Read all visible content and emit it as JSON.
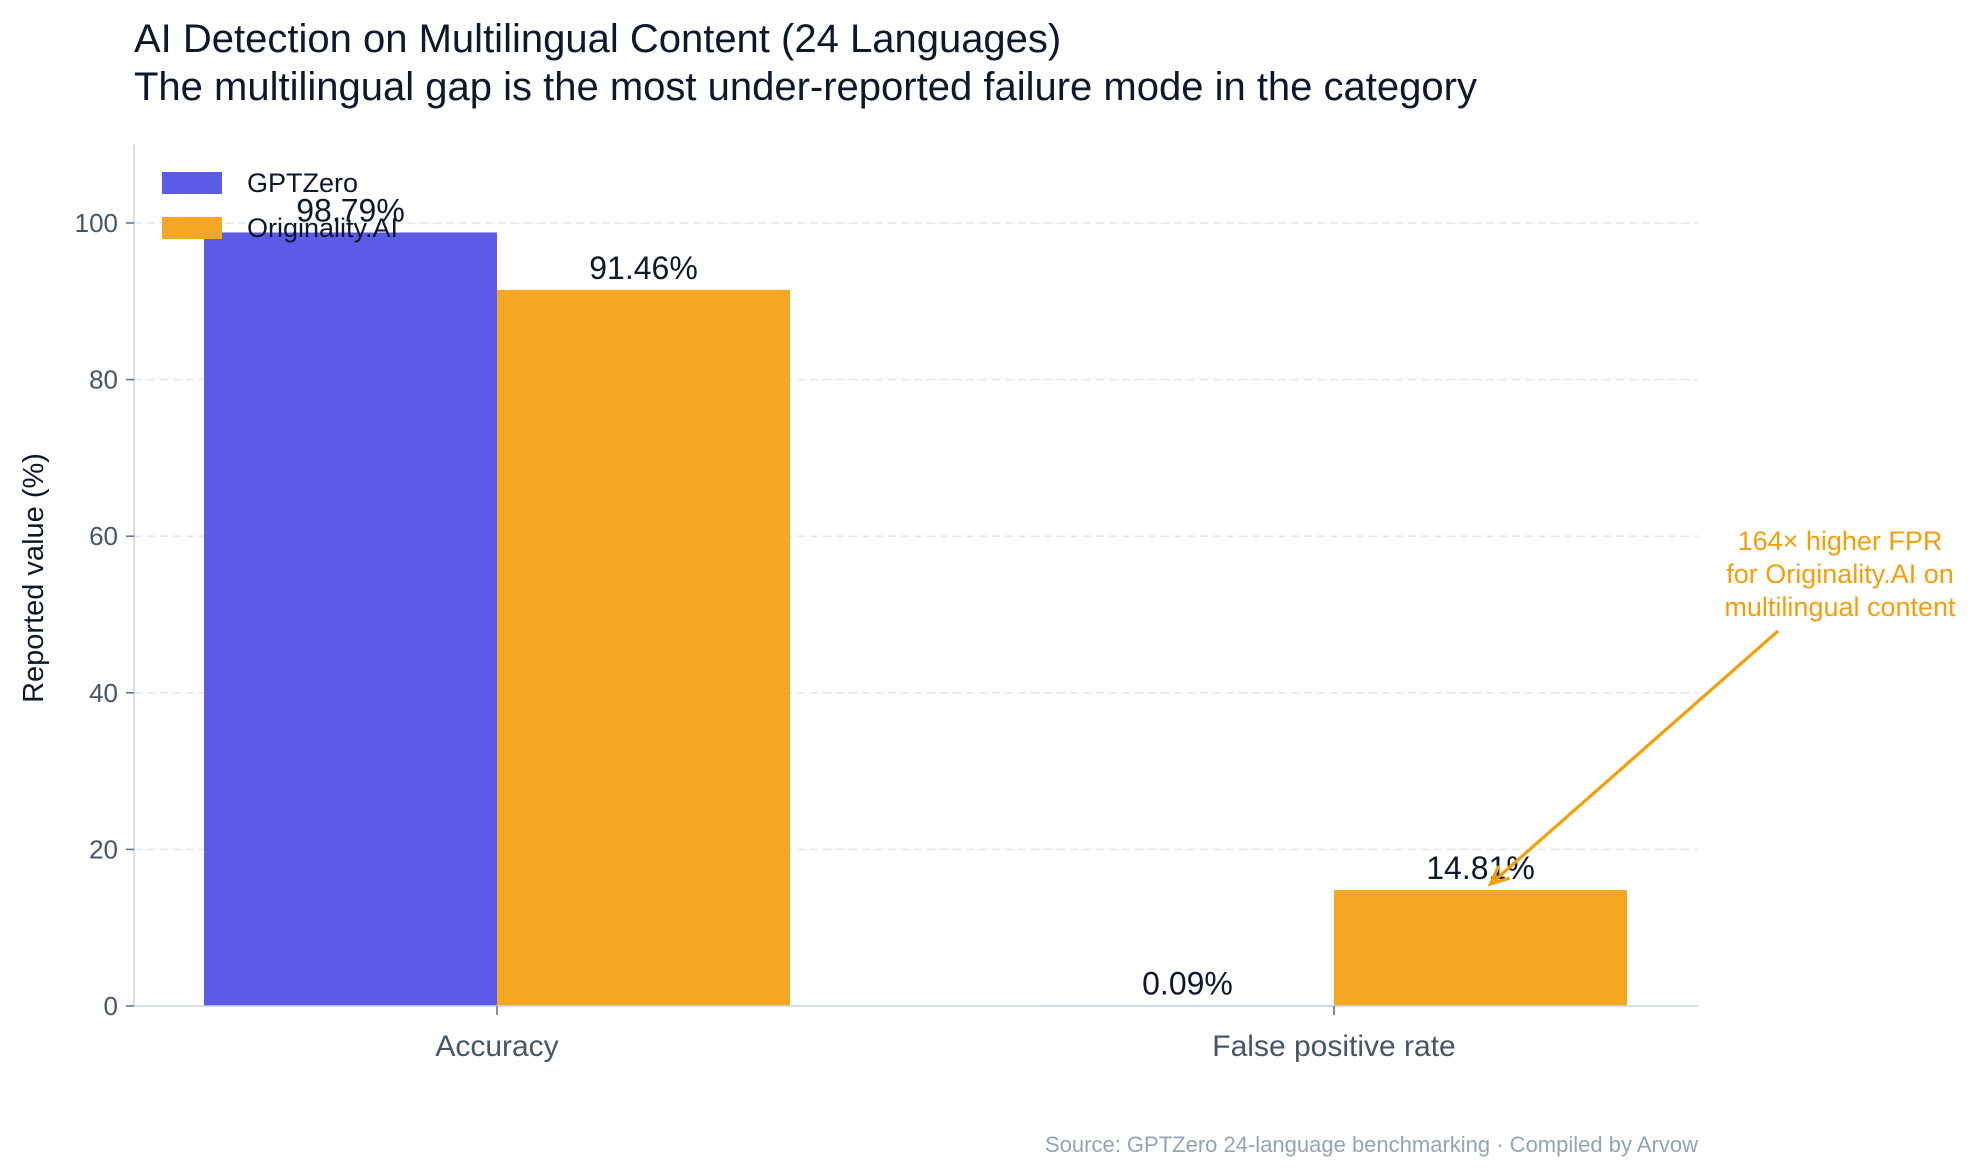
{
  "chart_data": {
    "type": "bar",
    "title": "AI Detection on Multilingual Content (24 Languages)",
    "subtitle": "The multilingual gap is the most under-reported failure mode in the category",
    "xlabel": "",
    "ylabel": "Reported value (%)",
    "ylim": [
      0,
      110
    ],
    "yticks": [
      0,
      20,
      40,
      60,
      80,
      100
    ],
    "ytick_labels": [
      "0",
      "20",
      "40",
      "60",
      "80",
      "100"
    ],
    "categories": [
      "Accuracy",
      "False positive rate"
    ],
    "series": [
      {
        "name": "GPTZero",
        "values": [
          98.79,
          0.09
        ],
        "labels": [
          "98.79%",
          "0.09%"
        ],
        "color": "#5b5be8"
      },
      {
        "name": "Originality.AI",
        "values": [
          91.46,
          14.81
        ],
        "labels": [
          "91.46%",
          "14.81%"
        ],
        "color": "#f5a623"
      }
    ],
    "grid": "horizontal dashed",
    "legend": "top-left",
    "annotation": {
      "lines": [
        "164× higher FPR",
        "for Originality.AI on",
        "multilingual content"
      ],
      "color": "#f59e0b",
      "target_category": "False positive rate",
      "target_series": "Originality.AI"
    },
    "source": "Source: GPTZero 24-language benchmarking · Compiled by Arvow"
  }
}
